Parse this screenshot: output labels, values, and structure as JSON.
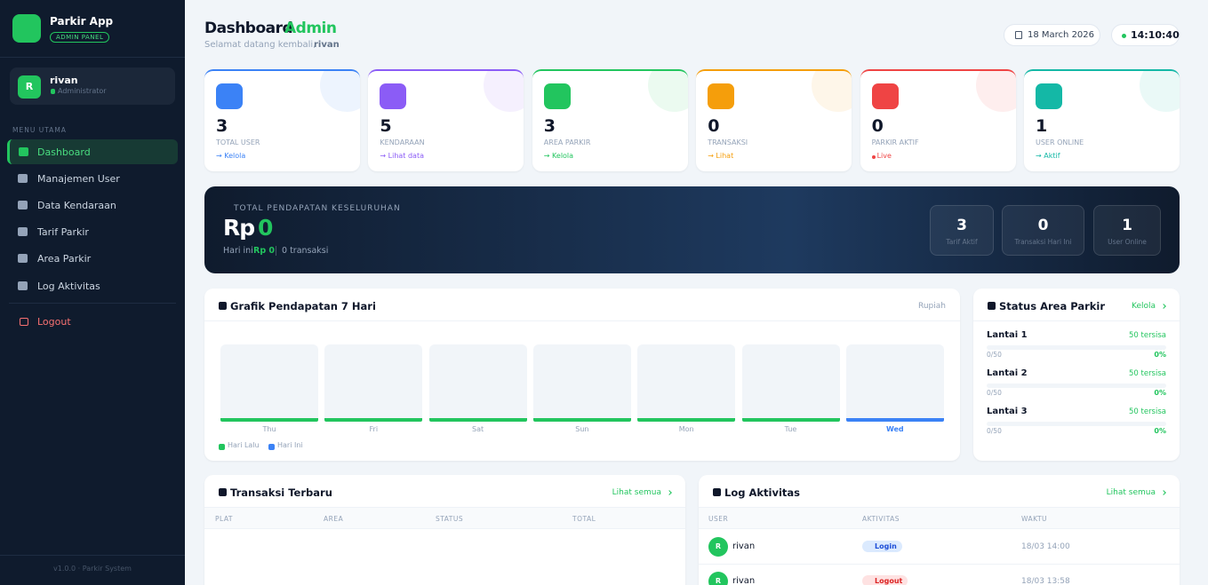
{
  "sidebar": {
    "brand": "Parkir App",
    "badge": "ADMIN PANEL",
    "avatar": "R",
    "user": "rivan",
    "role": "Administrator",
    "menu_label": "MENU UTAMA",
    "menu": [
      "Dashboard",
      "Manajemen User",
      "Data Kendaraan",
      "Tarif Parkir",
      "Area Parkir",
      "Log Aktivitas"
    ],
    "logout": "Logout",
    "footer": "v1.0.0 · Parkir System"
  },
  "header": {
    "title": "Dashboard",
    "title_accent": "Admin",
    "welcome": "Selamat datang kembali,",
    "user": "rivan",
    "date": "18 March 2026",
    "time": "14:10:40"
  },
  "stats": [
    {
      "value": "3",
      "label": "TOTAL USER",
      "link": "→ Kelola",
      "color": "#3b82f6"
    },
    {
      "value": "5",
      "label": "KENDARAAN",
      "link": "→ Lihat data",
      "color": "#8b5cf6"
    },
    {
      "value": "3",
      "label": "AREA PARKIR",
      "link": "→ Kelola",
      "color": "#22c55e"
    },
    {
      "value": "0",
      "label": "TRANSAKSI",
      "link": "→ Lihat",
      "color": "#f59e0b"
    },
    {
      "value": "0",
      "label": "PARKIR AKTIF",
      "link": "Live",
      "color": "#ef4444"
    },
    {
      "value": "1",
      "label": "USER ONLINE",
      "link": "→ Aktif",
      "color": "#14b8a6"
    }
  ],
  "revenue": {
    "label": "TOTAL PENDAPATAN KESELURUHAN",
    "currency": "Rp",
    "amount": "0",
    "today_label": "Hari ini:",
    "today_value": "Rp 0",
    "transactions": "0 transaksi",
    "mini": [
      {
        "value": "3",
        "label": "Tarif Aktif"
      },
      {
        "value": "0",
        "label": "Transaksi Hari Ini"
      },
      {
        "value": "1",
        "label": "User Online"
      }
    ]
  },
  "chart_panel": {
    "title": "Grafik Pendapatan 7 Hari",
    "unit": "Rupiah",
    "days": [
      "Thu",
      "Fri",
      "Sat",
      "Sun",
      "Mon",
      "Tue",
      "Wed"
    ],
    "legend": [
      "Hari Lalu",
      "Hari Ini"
    ]
  },
  "area_panel": {
    "title": "Status Area Parkir",
    "link": "Kelola",
    "areas": [
      {
        "name": "Lantai 1",
        "free": "50 tersisa",
        "used": "0/50",
        "percent": "0%"
      },
      {
        "name": "Lantai 2",
        "free": "50 tersisa",
        "used": "0/50",
        "percent": "0%"
      },
      {
        "name": "Lantai 3",
        "free": "50 tersisa",
        "used": "0/50",
        "percent": "0%"
      }
    ]
  },
  "transactions_panel": {
    "title": "Transaksi Terbaru",
    "link": "Lihat semua",
    "columns": [
      "PLAT",
      "AREA",
      "STATUS",
      "TOTAL"
    ]
  },
  "log_panel": {
    "title": "Log Aktivitas",
    "link": "Lihat semua",
    "columns": [
      "USER",
      "AKTIVITAS",
      "WAKTU"
    ],
    "rows": [
      {
        "avatar": "R",
        "user": "rivan",
        "action": "Login",
        "time": "18/03 14:00"
      },
      {
        "avatar": "R",
        "user": "rivan",
        "action": "Logout",
        "time": "18/03 13:58"
      }
    ]
  }
}
